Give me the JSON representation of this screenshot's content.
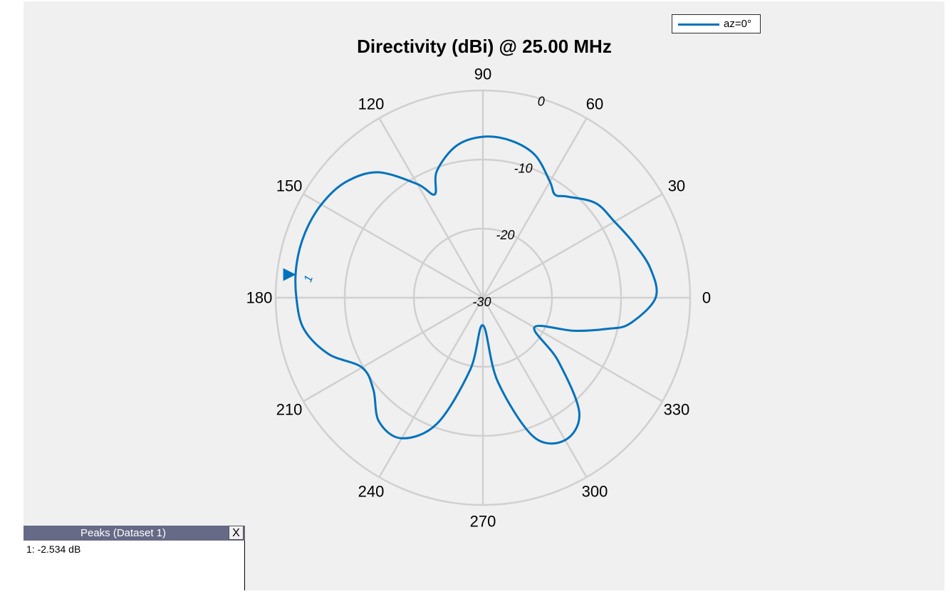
{
  "chart_data": {
    "type": "polar-line",
    "title": "Directivity (dBi) @ 25.00 MHz",
    "angle_unit": "deg",
    "angle_ticks": [
      0,
      30,
      60,
      90,
      120,
      150,
      180,
      210,
      240,
      270,
      300,
      330
    ],
    "angle_tick_labels": [
      "0",
      "30",
      "60",
      "90",
      "120",
      "150",
      "180",
      "210",
      "240",
      "270",
      "300",
      "330"
    ],
    "rlim": [
      -30,
      0
    ],
    "rticks": [
      -30,
      -20,
      -10,
      0
    ],
    "rtick_labels": [
      "-30",
      "-20",
      "-10",
      "0"
    ],
    "grid": true,
    "legend": {
      "position": "top-right",
      "entries": [
        "az=0°"
      ]
    },
    "series": [
      {
        "name": "az=0°",
        "color": "#0072bd",
        "theta": [
          0,
          10,
          20,
          30,
          40,
          50,
          55,
          60,
          70,
          80,
          90,
          100,
          110,
          115,
          120,
          130,
          140,
          150,
          160,
          170,
          180,
          190,
          200,
          210,
          220,
          230,
          240,
          250,
          260,
          270,
          280,
          290,
          300,
          310,
          320,
          330,
          340,
          346,
          350,
          360
        ],
        "r": [
          -5.0,
          -5.4,
          -6.8,
          -8.0,
          -8.7,
          -10.9,
          -11.8,
          -10.6,
          -8.0,
          -6.9,
          -6.7,
          -7.7,
          -10.5,
          -13.5,
          -11.0,
          -6.3,
          -4.0,
          -3.0,
          -2.6,
          -2.6,
          -3.0,
          -3.7,
          -6.2,
          -9.8,
          -9.3,
          -6.6,
          -6.5,
          -10.6,
          -19.4,
          -26.0,
          -17.7,
          -8.6,
          -6.2,
          -8.3,
          -15.8,
          -21.4,
          -16.0,
          -11.4,
          -8.4,
          -5.0
        ]
      }
    ],
    "markers": [
      {
        "label": "1",
        "theta": 173,
        "r": -2.534
      }
    ]
  },
  "legend": {
    "label": "az=0°"
  },
  "peaks_panel": {
    "title": "Peaks (Dataset 1)",
    "close_label": "X",
    "entries": [
      "1: -2.534 dB"
    ]
  },
  "colors": {
    "series": "#0072bd",
    "grid": "#d0d0d0",
    "figure_bg": "#f0f0f0",
    "panel_header": "#666a87"
  }
}
